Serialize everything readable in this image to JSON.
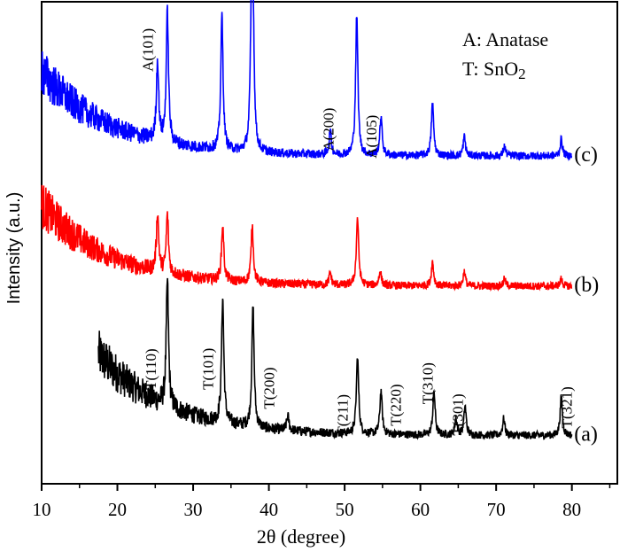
{
  "chart_data": {
    "type": "line",
    "title": "",
    "xlabel": "2θ (degree)",
    "ylabel": "Intensity (a.u.)",
    "xlim": [
      10,
      86
    ],
    "ylim": [
      0,
      100
    ],
    "xticks": [
      10,
      20,
      30,
      40,
      50,
      60,
      70,
      80
    ],
    "xtick_labels": [
      "10",
      "20",
      "30",
      "40",
      "50",
      "60",
      "70",
      "80"
    ],
    "y_ticks_shown": false,
    "grid": false,
    "legend": {
      "placement": "top-right",
      "lines": [
        "A: Anatase",
        "T: SnO",
        "2"
      ]
    },
    "series": [
      {
        "name": "(a)",
        "color": "#000000",
        "x_start": 17.5,
        "x_end": 80,
        "baseline": 10,
        "start_intensity": 27,
        "peaks": [
          [
            26.6,
            36
          ],
          [
            33.9,
            36
          ],
          [
            37.9,
            35
          ],
          [
            42.5,
            13
          ],
          [
            51.7,
            26
          ],
          [
            54.8,
            19
          ],
          [
            61.8,
            19
          ],
          [
            64.7,
            13.5
          ],
          [
            65.9,
            16
          ],
          [
            71.0,
            13.5
          ],
          [
            78.6,
            18
          ]
        ]
      },
      {
        "name": "(b)",
        "color": "#ff0000",
        "x_start": 10,
        "x_end": 80,
        "baseline": 41,
        "start_intensity": 58,
        "peaks": [
          [
            25.3,
            53
          ],
          [
            26.6,
            53
          ],
          [
            33.9,
            52.5
          ],
          [
            37.8,
            53
          ],
          [
            48.1,
            43.5
          ],
          [
            51.7,
            55
          ],
          [
            54.7,
            44
          ],
          [
            61.6,
            46
          ],
          [
            65.8,
            44
          ],
          [
            71.1,
            42.5
          ],
          [
            78.6,
            42.5
          ]
        ]
      },
      {
        "name": "(c)",
        "color": "#0000ff",
        "x_start": 10,
        "x_end": 80,
        "baseline": 68,
        "start_intensity": 85.5,
        "peaks": [
          [
            25.3,
            84.5
          ],
          [
            26.6,
            95
          ],
          [
            33.8,
            96
          ],
          [
            37.7,
            93
          ],
          [
            37.9,
            94
          ],
          [
            48.1,
            73
          ],
          [
            51.6,
            97
          ],
          [
            54.8,
            76
          ],
          [
            61.6,
            79
          ],
          [
            65.8,
            72
          ],
          [
            71.1,
            70
          ],
          [
            78.6,
            71.5
          ]
        ]
      }
    ],
    "annotations": [
      {
        "text": "A(101)",
        "x": 24.0,
        "y": 85.5
      },
      {
        "text": "A(200)",
        "x": 47.8,
        "y": 69
      },
      {
        "text": "A(105)",
        "x": 53.5,
        "y": 67.5
      },
      {
        "text": "T(110)",
        "x": 24.4,
        "y": 19.5
      },
      {
        "text": "T(101)",
        "x": 31.9,
        "y": 19.5
      },
      {
        "text": "T(200)",
        "x": 40.0,
        "y": 15.5
      },
      {
        "text": "T(211)",
        "x": 49.7,
        "y": 10
      },
      {
        "text": "T(220)",
        "x": 56.7,
        "y": 12
      },
      {
        "text": "T(310)",
        "x": 60.9,
        "y": 16.5
      },
      {
        "text": "T(301)",
        "x": 64.9,
        "y": 10
      },
      {
        "text": "T(321)",
        "x": 79.3,
        "y": 11.5
      }
    ]
  }
}
